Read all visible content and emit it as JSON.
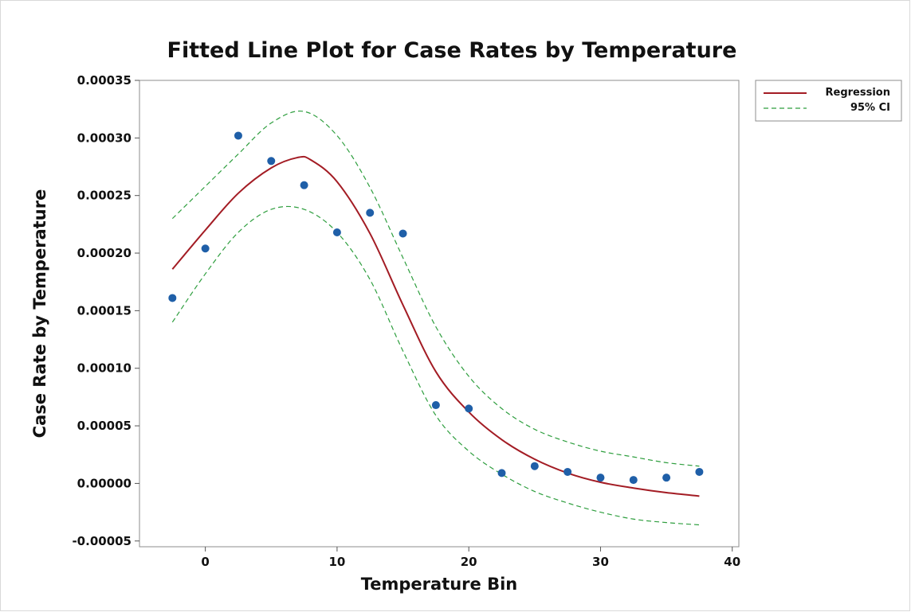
{
  "chart_data": {
    "type": "scatter",
    "title": "Fitted Line Plot for Case Rates by Temperature",
    "xlabel": "Temperature Bin",
    "ylabel": "Case Rate by Temperature",
    "xlim": [
      -5,
      40.5
    ],
    "ylim": [
      -5.5e-05,
      0.00035
    ],
    "x_ticks": [
      0,
      10,
      20,
      30,
      40
    ],
    "y_ticks": [
      -5e-05,
      0,
      5e-05,
      0.0001,
      0.00015,
      0.0002,
      0.00025,
      0.0003,
      0.00035
    ],
    "x_tick_labels": [
      "0",
      "10",
      "20",
      "30",
      "40"
    ],
    "y_tick_labels": [
      "-0.00005",
      "0.00000",
      "0.00005",
      "0.00010",
      "0.00015",
      "0.00020",
      "0.00025",
      "0.00030",
      "0.00035"
    ],
    "grid": false,
    "legend_position": "top-right",
    "legend": [
      {
        "label": "Regression",
        "style": "solid",
        "color": "#a31c24"
      },
      {
        "label": "95% CI",
        "style": "dashed",
        "color": "#2e9e3e"
      }
    ],
    "points": {
      "color": "#1f5fa8",
      "x": [
        -2.5,
        0,
        2.5,
        5,
        7.5,
        10,
        12.5,
        15,
        17.5,
        20,
        22.5,
        25,
        27.5,
        30,
        32.5,
        35,
        37.5
      ],
      "y": [
        0.000161,
        0.000204,
        0.000302,
        0.00028,
        0.000259,
        0.000218,
        0.000235,
        0.000217,
        6.8e-05,
        6.5e-05,
        9e-06,
        1.5e-05,
        1e-05,
        5e-06,
        3e-06,
        5e-06,
        1e-05
      ]
    },
    "series": [
      {
        "name": "Regression",
        "color": "#a31c24",
        "x": [
          -2.5,
          0,
          2.5,
          5,
          7,
          8,
          10,
          12.5,
          15,
          17.5,
          20,
          22.5,
          25,
          27.5,
          30,
          32.5,
          35,
          37.5
        ],
        "y": [
          0.000186,
          0.00022,
          0.000252,
          0.000274,
          0.000283,
          0.000281,
          0.000262,
          0.000217,
          0.000155,
          9.7e-05,
          6.2e-05,
          3.8e-05,
          2.1e-05,
          9e-06,
          1e-06,
          -4e-06,
          -8e-06,
          -1.1e-05
        ]
      },
      {
        "name": "95% CI Upper",
        "color": "#2e9e3e",
        "x": [
          -2.5,
          0,
          2.5,
          5,
          7.5,
          10,
          12.5,
          15,
          17.5,
          20,
          22.5,
          25,
          27.5,
          30,
          32.5,
          35,
          37.5
        ],
        "y": [
          0.00023,
          0.000258,
          0.000286,
          0.000313,
          0.000323,
          0.000302,
          0.000257,
          0.000196,
          0.000136,
          9.3e-05,
          6.5e-05,
          4.7e-05,
          3.6e-05,
          2.8e-05,
          2.3e-05,
          1.8e-05,
          1.5e-05
        ]
      },
      {
        "name": "95% CI Lower",
        "color": "#2e9e3e",
        "x": [
          -2.5,
          0,
          2.5,
          5,
          7.5,
          10,
          12.5,
          15,
          17.5,
          20,
          22.5,
          25,
          27.5,
          30,
          32.5,
          35,
          37.5
        ],
        "y": [
          0.00014,
          0.000182,
          0.000218,
          0.000238,
          0.000238,
          0.000218,
          0.000177,
          0.000115,
          5.9e-05,
          2.8e-05,
          8e-06,
          -7e-06,
          -1.7e-05,
          -2.5e-05,
          -3.1e-05,
          -3.4e-05,
          -3.6e-05
        ]
      }
    ]
  }
}
